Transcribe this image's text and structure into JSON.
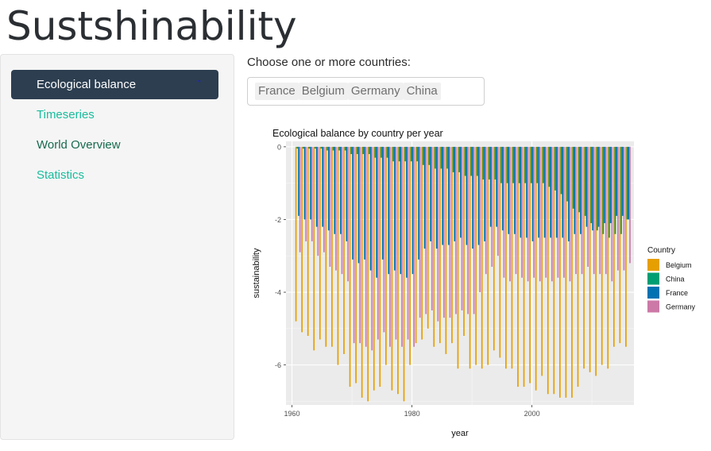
{
  "app": {
    "title": "Sustshinability"
  },
  "sidebar": {
    "items": [
      {
        "label": "Ecological balance",
        "active": true
      },
      {
        "label": "Timeseries"
      },
      {
        "label": "World Overview"
      },
      {
        "label": "Statistics"
      }
    ]
  },
  "country_select": {
    "label": "Choose one or more countries:",
    "selected": [
      "France",
      "Belgium",
      "Germany",
      "China"
    ]
  },
  "colors": {
    "Belgium": "#E69F00",
    "China": "#009E73",
    "France": "#0072B2",
    "Germany": "#CC79A7",
    "nav_active_bg": "#2c3e50",
    "nav_link": "#18bc9c",
    "panel_bg": "#ebebeb"
  },
  "chart_data": {
    "type": "bar",
    "title": "Ecological balance by country per year",
    "xlabel": "year",
    "ylabel": "sustainability",
    "xticks": [
      1960,
      1980,
      2000
    ],
    "yticks": [
      0,
      -2,
      -4,
      -6
    ],
    "xlim": [
      1959,
      2017
    ],
    "ylim": [
      -7.1,
      0.15
    ],
    "grid": true,
    "legend": {
      "title": "Country",
      "position": "right"
    },
    "x": [
      1961,
      1962,
      1963,
      1964,
      1965,
      1966,
      1967,
      1968,
      1969,
      1970,
      1971,
      1972,
      1973,
      1974,
      1975,
      1976,
      1977,
      1978,
      1979,
      1980,
      1981,
      1982,
      1983,
      1984,
      1985,
      1986,
      1987,
      1988,
      1989,
      1990,
      1991,
      1992,
      1993,
      1994,
      1995,
      1996,
      1997,
      1998,
      1999,
      2000,
      2001,
      2002,
      2003,
      2004,
      2005,
      2006,
      2007,
      2008,
      2009,
      2010,
      2011,
      2012,
      2013,
      2014,
      2015,
      2016
    ],
    "series": [
      {
        "name": "Belgium",
        "values": [
          -4.8,
          -5.1,
          -5.2,
          -5.6,
          -5.3,
          -5.5,
          -5.5,
          -6.0,
          -5.7,
          -6.6,
          -6.5,
          -6.9,
          -7.0,
          -6.7,
          -6.6,
          -6.0,
          -6.7,
          -6.8,
          -7.0,
          -6.0,
          -5.4,
          -5.3,
          -5.0,
          -5.5,
          -5.4,
          -5.7,
          -5.4,
          -6.1,
          -5.2,
          -6.1,
          -6.0,
          -6.1,
          -6.0,
          -5.6,
          -5.8,
          -6.1,
          -6.1,
          -6.6,
          -6.6,
          -6.5,
          -6.7,
          -6.3,
          -6.8,
          -6.8,
          -6.9,
          -6.9,
          -6.9,
          -6.6,
          -6.1,
          -6.2,
          -6.3,
          -6.0,
          -6.1,
          -5.5,
          -5.4,
          -5.5
        ]
      },
      {
        "name": "China",
        "values": [
          -0.05,
          -0.05,
          -0.05,
          -0.05,
          -0.05,
          -0.1,
          -0.1,
          -0.1,
          -0.1,
          -0.2,
          -0.2,
          -0.2,
          -0.2,
          -0.3,
          -0.3,
          -0.3,
          -0.4,
          -0.4,
          -0.4,
          -0.4,
          -0.4,
          -0.5,
          -0.5,
          -0.6,
          -0.6,
          -0.6,
          -0.7,
          -0.7,
          -0.8,
          -0.8,
          -0.8,
          -0.9,
          -0.9,
          -0.9,
          -1.0,
          -1.0,
          -1.0,
          -1.0,
          -1.0,
          -1.0,
          -1.0,
          -1.0,
          -1.1,
          -1.2,
          -1.3,
          -1.5,
          -1.7,
          -1.8,
          -1.9,
          -2.1,
          -2.3,
          -2.4,
          -2.5,
          -2.4,
          -2.4,
          -2.0
        ]
      },
      {
        "name": "France",
        "values": [
          -1.9,
          -2.0,
          -2.0,
          -2.2,
          -2.2,
          -2.3,
          -2.4,
          -2.4,
          -2.6,
          -3.1,
          -3.2,
          -3.1,
          -3.4,
          -3.6,
          -3.1,
          -3.5,
          -3.4,
          -3.5,
          -3.6,
          -3.5,
          -3.1,
          -2.8,
          -2.6,
          -2.8,
          -2.7,
          -2.7,
          -2.6,
          -2.5,
          -2.7,
          -2.8,
          -2.7,
          -2.6,
          -2.2,
          -2.2,
          -2.3,
          -2.4,
          -2.4,
          -2.5,
          -2.5,
          -2.6,
          -2.5,
          -2.5,
          -2.5,
          -2.5,
          -2.5,
          -2.6,
          -2.4,
          -2.4,
          -2.2,
          -2.3,
          -2.2,
          -2.1,
          -2.1,
          -1.9,
          -1.9,
          -2.0
        ]
      },
      {
        "name": "Germany",
        "values": [
          -2.9,
          -2.6,
          -2.6,
          -3.0,
          -2.9,
          -3.3,
          -3.4,
          -3.5,
          -3.7,
          -5.4,
          -5.4,
          -5.5,
          -5.6,
          -5.3,
          -5.1,
          -5.5,
          -5.3,
          -5.5,
          -5.3,
          -5.5,
          -4.7,
          -4.6,
          -4.5,
          -4.8,
          -4.7,
          -4.7,
          -4.6,
          -4.5,
          -4.6,
          -4.6,
          -4.0,
          -3.5,
          -3.3,
          -3.0,
          -3.6,
          -3.7,
          -3.5,
          -3.6,
          -3.7,
          -3.6,
          -3.7,
          -3.6,
          -3.7,
          -3.6,
          -3.6,
          -3.7,
          -3.5,
          -3.5,
          -3.3,
          -3.5,
          -3.5,
          -3.5,
          -3.7,
          -3.4,
          -3.4,
          -3.2
        ]
      }
    ]
  }
}
